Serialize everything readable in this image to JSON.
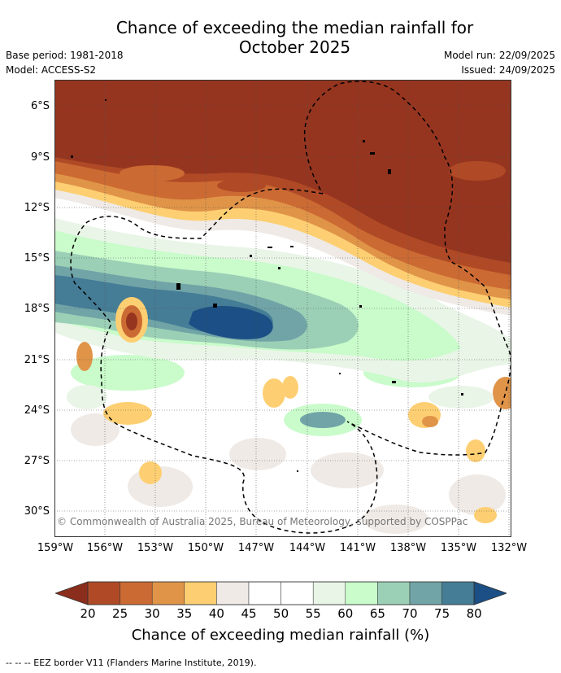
{
  "title_line1": "Chance of exceeding the median rainfall for",
  "title_line2": "October 2025",
  "meta": {
    "base_period": "Base period: 1981-2018",
    "model": "Model: ACCESS-S2",
    "model_run": "Model run: 22/09/2025",
    "issued": "Issued: 24/09/2025"
  },
  "copyright": "© Commonwealth of Australia 2025, Bureau of Meteorology, supported by COSPPac",
  "y_ticks": [
    "6°S",
    "9°S",
    "12°S",
    "15°S",
    "18°S",
    "21°S",
    "24°S",
    "27°S",
    "30°S"
  ],
  "x_ticks": [
    "159°W",
    "156°W",
    "153°W",
    "150°W",
    "147°W",
    "144°W",
    "141°W",
    "138°W",
    "135°W",
    "132°W"
  ],
  "colorbar": {
    "labels": [
      "20",
      "25",
      "30",
      "35",
      "40",
      "45",
      "50",
      "55",
      "60",
      "65",
      "70",
      "75",
      "80"
    ],
    "colors": [
      "#8b2d1c",
      "#b04a26",
      "#cc6a33",
      "#e09448",
      "#fdcf72",
      "#efeae6",
      "#ffffff",
      "#ffffff",
      "#e9f5e7",
      "#c9fbcb",
      "#9bd0b6",
      "#70a4a7",
      "#457c96",
      "#1b4f85"
    ],
    "title": "Chance of exceeding median rainfall (%)"
  },
  "footer": "--  --  -- EEZ border V11 (Flanders Marine Institute, 2019).",
  "map_colors": {
    "dark_brown": "#96351f",
    "brown": "#b04a26",
    "orange": "#cc6a33",
    "light_orange": "#e09448",
    "yellow": "#fdcf72",
    "grey_white": "#efeae6",
    "light_green": "#e9f5e7",
    "green": "#c9fbcb",
    "teal_light": "#9bd0b6",
    "teal": "#70a4a7",
    "blue_teal": "#457c96",
    "dark_blue": "#1b4f85"
  }
}
